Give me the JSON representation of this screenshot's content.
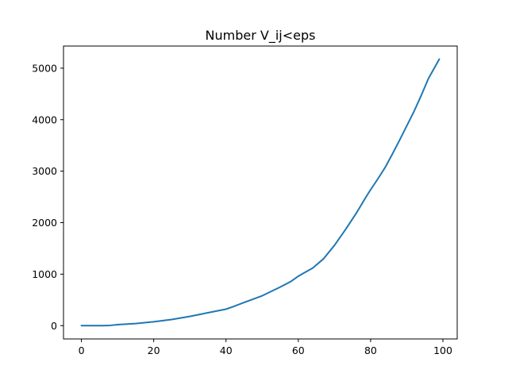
{
  "chart_data": {
    "type": "line",
    "title": "Number V_ij<eps",
    "xlabel": "",
    "ylabel": "",
    "xlim": [
      -4.95,
      103.95
    ],
    "ylim": [
      -258,
      5430
    ],
    "x_ticks": [
      0,
      20,
      40,
      60,
      80,
      100
    ],
    "y_ticks": [
      0,
      1000,
      2000,
      3000,
      4000,
      5000
    ],
    "grid": false,
    "legend": "none",
    "series": [
      {
        "color": "#1f77b4",
        "x": [
          0,
          3,
          6,
          8,
          10,
          15,
          20,
          25,
          30,
          35,
          40,
          42,
          45,
          50,
          55,
          58,
          60,
          62,
          64,
          67,
          70,
          73,
          76,
          79,
          80,
          82,
          84,
          86,
          88,
          90,
          92,
          94,
          96,
          98,
          99
        ],
        "y": [
          0,
          0,
          0,
          5,
          20,
          40,
          75,
          120,
          180,
          250,
          320,
          370,
          450,
          580,
          750,
          860,
          960,
          1040,
          1120,
          1300,
          1560,
          1860,
          2180,
          2530,
          2640,
          2850,
          3070,
          3330,
          3600,
          3880,
          4160,
          4470,
          4800,
          5050,
          5175
        ]
      }
    ]
  }
}
